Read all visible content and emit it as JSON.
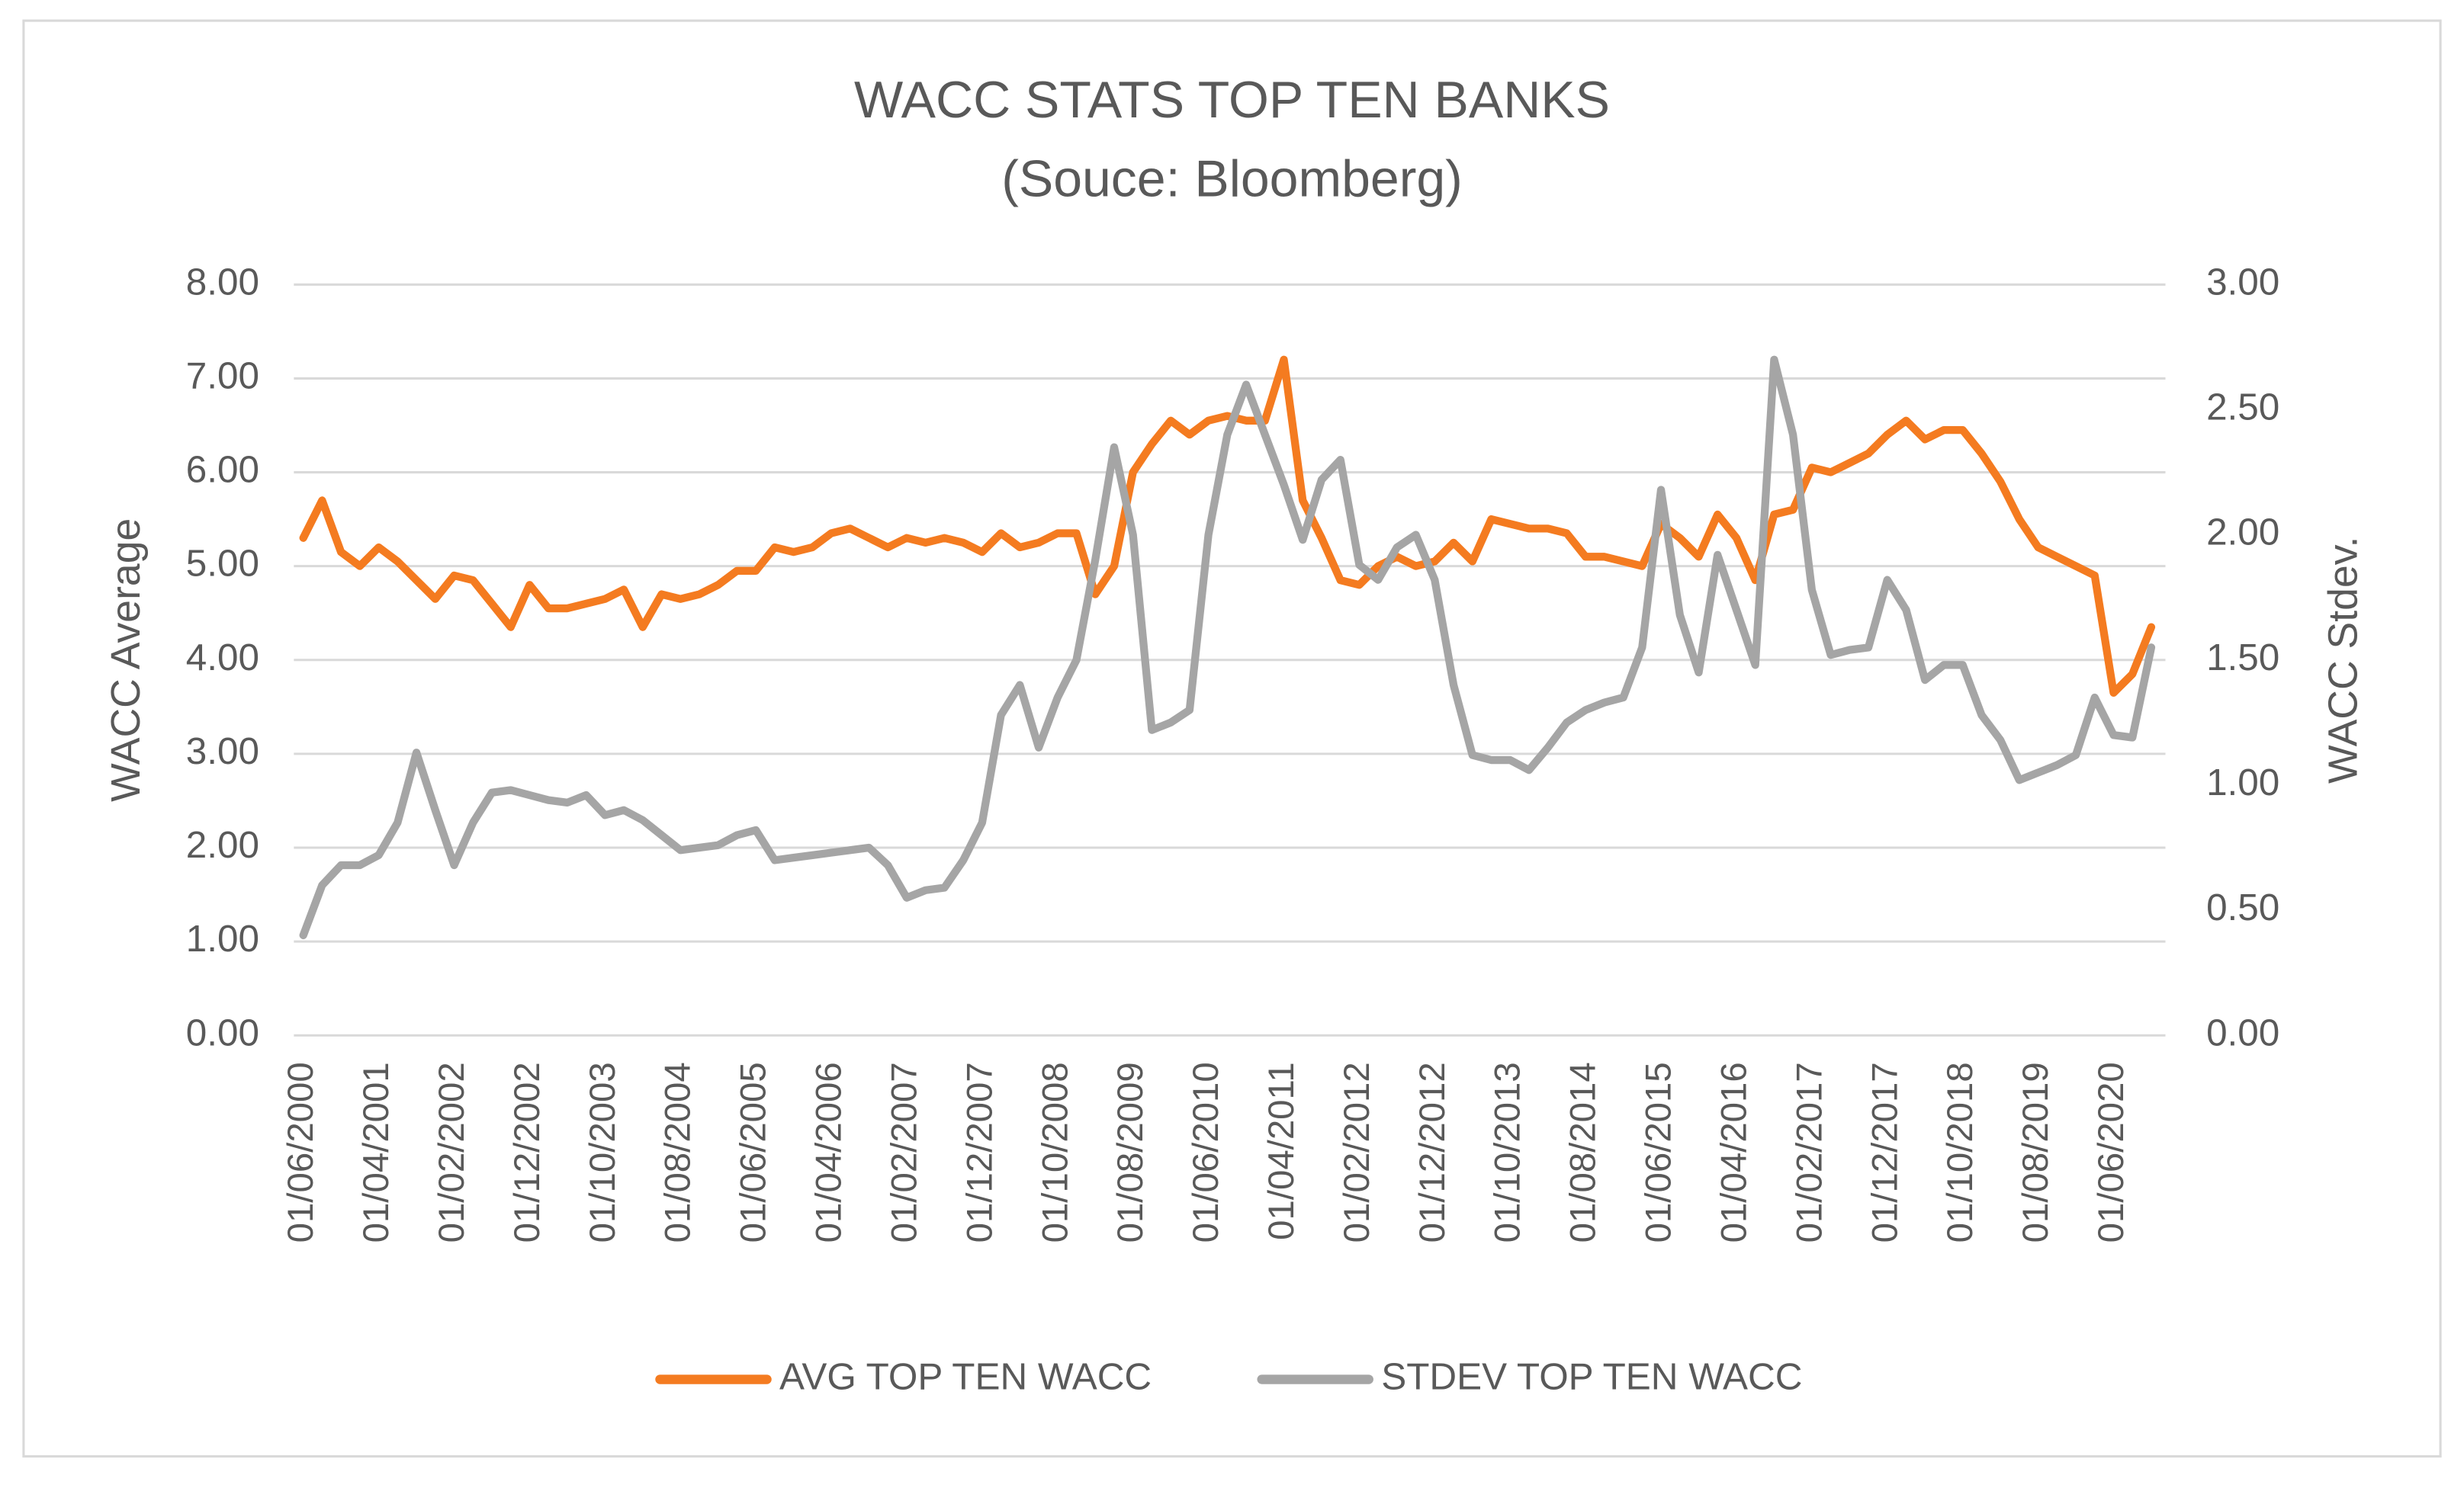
{
  "chart_data": {
    "type": "line",
    "title": "WACC STATS TOP TEN BANKS",
    "subtitle": "(Souce: Bloomberg)",
    "y_label": "WACC Average",
    "y2_label": "WACC Stdev.",
    "categories": [
      "01/06/2000",
      null,
      null,
      null,
      "01/04/2001",
      null,
      null,
      null,
      "01/02/2002",
      null,
      null,
      null,
      "01/12/2002",
      null,
      null,
      null,
      "01/10/2003",
      null,
      null,
      null,
      "01/08/2004",
      null,
      null,
      null,
      "01/06/2005",
      null,
      null,
      null,
      "01/04/2006",
      null,
      null,
      null,
      "01/02/2007",
      null,
      null,
      null,
      "01/12/2007",
      null,
      null,
      null,
      "01/10/2008",
      null,
      null,
      null,
      "01/08/2009",
      null,
      null,
      null,
      "01/06/2010",
      null,
      null,
      null,
      "01/04/2011",
      null,
      null,
      null,
      "01/02/2012",
      null,
      null,
      null,
      "01/12/2012",
      null,
      null,
      null,
      "01/10/2013",
      null,
      null,
      null,
      "01/08/2014",
      null,
      null,
      null,
      "01/06/2015",
      null,
      null,
      null,
      "01/04/2016",
      null,
      null,
      null,
      "01/02/2017",
      null,
      null,
      null,
      "01/12/2017",
      null,
      null,
      null,
      "01/10/2018",
      null,
      null,
      null,
      "01/08/2019",
      null,
      null,
      null,
      "01/06/2020",
      null,
      null
    ],
    "series": [
      {
        "name": "AVG TOP TEN WACC",
        "color": "#F47B20",
        "axis": "y",
        "values": [
          5.3,
          5.7,
          5.15,
          5.0,
          5.2,
          5.05,
          4.85,
          4.65,
          4.9,
          4.85,
          4.6,
          4.35,
          4.8,
          4.55,
          4.55,
          4.6,
          4.65,
          4.75,
          4.35,
          4.7,
          4.65,
          4.7,
          4.8,
          4.95,
          4.95,
          5.2,
          5.15,
          5.2,
          5.35,
          5.4,
          5.3,
          5.2,
          5.3,
          5.25,
          5.3,
          5.25,
          5.15,
          5.35,
          5.2,
          5.25,
          5.35,
          5.35,
          4.7,
          5.0,
          6.0,
          6.3,
          6.55,
          6.4,
          6.55,
          6.6,
          6.55,
          6.55,
          7.2,
          5.7,
          5.3,
          4.85,
          4.8,
          5.0,
          5.1,
          5.0,
          5.05,
          5.25,
          5.05,
          5.5,
          5.45,
          5.4,
          5.4,
          5.35,
          5.1,
          5.1,
          5.05,
          5.0,
          5.45,
          5.3,
          5.1,
          5.55,
          5.3,
          4.85,
          5.55,
          5.6,
          6.05,
          6.0,
          6.1,
          6.2,
          6.4,
          6.55,
          6.35,
          6.45,
          6.45,
          6.2,
          5.9,
          5.5,
          5.2,
          5.1,
          5.0,
          4.9,
          3.65,
          3.85,
          4.35
        ]
      },
      {
        "name": "STDEV TOP TEN WACC",
        "color": "#A5A5A5",
        "axis": "y2",
        "values": [
          0.4,
          0.6,
          0.68,
          0.68,
          0.72,
          0.85,
          1.13,
          0.9,
          0.68,
          0.85,
          0.97,
          0.98,
          0.96,
          0.94,
          0.93,
          0.96,
          0.88,
          0.9,
          0.86,
          0.8,
          0.74,
          0.75,
          0.76,
          0.8,
          0.82,
          0.7,
          0.71,
          0.72,
          0.73,
          0.74,
          0.75,
          0.68,
          0.55,
          0.58,
          0.59,
          0.7,
          0.85,
          1.28,
          1.4,
          1.15,
          1.35,
          1.5,
          1.9,
          2.35,
          2.0,
          1.22,
          1.25,
          1.3,
          2.0,
          2.4,
          2.6,
          2.4,
          2.2,
          1.98,
          2.22,
          2.3,
          1.88,
          1.82,
          1.95,
          2.0,
          1.82,
          1.4,
          1.12,
          1.1,
          1.1,
          1.06,
          1.15,
          1.25,
          1.3,
          1.33,
          1.35,
          1.55,
          2.18,
          1.68,
          1.45,
          1.92,
          1.7,
          1.48,
          2.7,
          2.4,
          1.78,
          1.52,
          1.54,
          1.55,
          1.82,
          1.7,
          1.42,
          1.48,
          1.48,
          1.28,
          1.18,
          1.02,
          1.05,
          1.08,
          1.12,
          1.35,
          1.2,
          1.19,
          1.55
        ]
      }
    ],
    "ylim": [
      0,
      8
    ],
    "yticks": [
      {
        "value": 0,
        "label": "0.00"
      },
      {
        "value": 1,
        "label": "1.00"
      },
      {
        "value": 2,
        "label": "2.00"
      },
      {
        "value": 3,
        "label": "3.00"
      },
      {
        "value": 4,
        "label": "4.00"
      },
      {
        "value": 5,
        "label": "5.00"
      },
      {
        "value": 6,
        "label": "6.00"
      },
      {
        "value": 7,
        "label": "7.00"
      },
      {
        "value": 8,
        "label": "8.00"
      }
    ],
    "y2lim": [
      0,
      3
    ],
    "y2ticks": [
      {
        "value": 0,
        "label": "0.00"
      },
      {
        "value": 0.5,
        "label": "0.50"
      },
      {
        "value": 1,
        "label": "1.00"
      },
      {
        "value": 1.5,
        "label": "1.50"
      },
      {
        "value": 2,
        "label": "2.00"
      },
      {
        "value": 2.5,
        "label": "2.50"
      },
      {
        "value": 3,
        "label": "3.00"
      }
    ],
    "grid": true,
    "legend": "bottom"
  }
}
